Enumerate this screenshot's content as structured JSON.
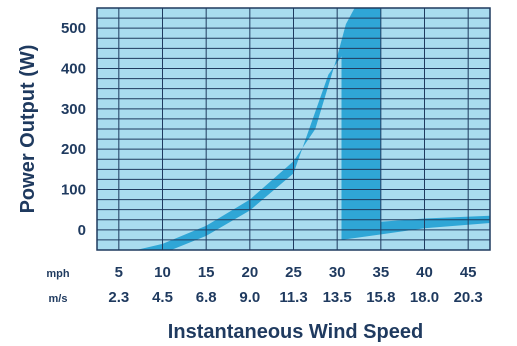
{
  "chart_data": {
    "type": "area",
    "xlabel": "Instantaneous Wind Speed",
    "ylabel": "Power Output (W)",
    "x_unit_labels": [
      "mph",
      "m/s"
    ],
    "x_ticks_mph": [
      "5",
      "10",
      "15",
      "20",
      "25",
      "30",
      "35",
      "40",
      "45"
    ],
    "x_ticks_ms": [
      "2.3",
      "4.5",
      "6.8",
      "9.0",
      "11.3",
      "13.5",
      "15.8",
      "18.0",
      "20.3"
    ],
    "y_ticks": [
      "0",
      "100",
      "200",
      "300",
      "400",
      "500"
    ],
    "xlim": [
      2.5,
      47.5
    ],
    "ylim": [
      -50,
      550
    ],
    "grid": true,
    "colors": {
      "background": "#a9dcef",
      "band": "#2fa6d6",
      "grid": "#1f3a5f",
      "text": "#1f3a5f"
    },
    "series": [
      {
        "upper": [
          [
            7,
            -50
          ],
          [
            10,
            -35
          ],
          [
            15,
            10
          ],
          [
            20,
            75
          ],
          [
            25,
            170
          ],
          [
            27.5,
            250
          ],
          [
            30,
            430
          ],
          [
            31,
            510
          ],
          [
            32,
            550
          ],
          [
            35,
            550
          ]
        ],
        "lower": [
          [
            35,
            -50
          ],
          [
            35,
            20
          ],
          [
            40,
            28
          ],
          [
            47.5,
            35
          ],
          [
            47.5,
            17
          ],
          [
            40,
            4
          ],
          [
            30.5,
            -25
          ],
          [
            30.5,
            430
          ],
          [
            29,
            385
          ],
          [
            25,
            140
          ],
          [
            20,
            48
          ],
          [
            15,
            -15
          ],
          [
            11,
            -50
          ]
        ]
      }
    ]
  }
}
